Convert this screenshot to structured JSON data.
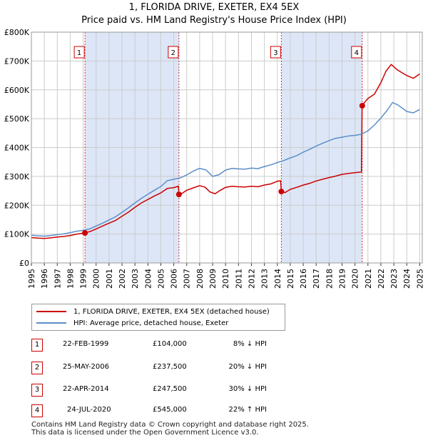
{
  "title_line1": "1, FLORIDA DRIVE, EXETER, EX4 5EX",
  "title_line2": "Price paid vs. HM Land Registry's House Price Index (HPI)",
  "chart_data": {
    "type": "line",
    "title": "1, FLORIDA DRIVE, EXETER, EX4 5EX — Price paid vs. HM Land Registry's House Price Index (HPI)",
    "xlabel": "",
    "ylabel": "",
    "xlim": [
      1995,
      2025.2
    ],
    "ylim": [
      0,
      800000
    ],
    "y_ticks": [
      0,
      100000,
      200000,
      300000,
      400000,
      500000,
      600000,
      700000,
      800000
    ],
    "y_tick_labels": [
      "£0",
      "£100K",
      "£200K",
      "£300K",
      "£400K",
      "£500K",
      "£600K",
      "£700K",
      "£800K"
    ],
    "x_ticks": [
      1995,
      1996,
      1997,
      1998,
      1999,
      2000,
      2001,
      2002,
      2003,
      2004,
      2005,
      2006,
      2007,
      2008,
      2009,
      2010,
      2011,
      2012,
      2013,
      2014,
      2015,
      2016,
      2017,
      2018,
      2019,
      2020,
      2021,
      2022,
      2023,
      2024,
      2025
    ],
    "grid": true,
    "legend_placement": "below-chart",
    "series": [
      {
        "name": "1, FLORIDA DRIVE, EXETER, EX4 5EX (detached house)",
        "color": "#cc0000",
        "points": [
          [
            1995.0,
            88000
          ],
          [
            1995.5,
            86000
          ],
          [
            1996.0,
            85000
          ],
          [
            1996.5,
            87000
          ],
          [
            1997.0,
            90000
          ],
          [
            1997.5,
            92000
          ],
          [
            1998.0,
            95000
          ],
          [
            1998.5,
            100000
          ],
          [
            1999.14,
            104000
          ],
          [
            1999.6,
            110000
          ],
          [
            2000.0,
            118000
          ],
          [
            2000.5,
            128000
          ],
          [
            2001.0,
            138000
          ],
          [
            2001.5,
            147000
          ],
          [
            2002.0,
            162000
          ],
          [
            2002.5,
            176000
          ],
          [
            2003.0,
            193000
          ],
          [
            2003.5,
            208000
          ],
          [
            2004.0,
            220000
          ],
          [
            2004.5,
            232000
          ],
          [
            2005.0,
            243000
          ],
          [
            2005.5,
            258000
          ],
          [
            2006.0,
            261000
          ],
          [
            2006.35,
            266000
          ],
          [
            2006.4,
            237500
          ],
          [
            2006.6,
            240000
          ],
          [
            2007.0,
            252000
          ],
          [
            2007.5,
            260000
          ],
          [
            2008.0,
            268000
          ],
          [
            2008.4,
            263000
          ],
          [
            2008.8,
            246000
          ],
          [
            2009.2,
            240000
          ],
          [
            2009.6,
            252000
          ],
          [
            2010.0,
            262000
          ],
          [
            2010.5,
            266000
          ],
          [
            2011.0,
            264000
          ],
          [
            2011.5,
            263000
          ],
          [
            2012.0,
            266000
          ],
          [
            2012.5,
            264000
          ],
          [
            2013.0,
            270000
          ],
          [
            2013.5,
            274000
          ],
          [
            2014.0,
            283000
          ],
          [
            2014.25,
            285000
          ],
          [
            2014.31,
            247500
          ],
          [
            2014.6,
            244000
          ],
          [
            2015.0,
            255000
          ],
          [
            2015.5,
            262000
          ],
          [
            2016.0,
            270000
          ],
          [
            2016.5,
            276000
          ],
          [
            2017.0,
            284000
          ],
          [
            2017.5,
            290000
          ],
          [
            2018.0,
            296000
          ],
          [
            2018.5,
            301000
          ],
          [
            2019.0,
            307000
          ],
          [
            2019.5,
            310000
          ],
          [
            2020.0,
            313000
          ],
          [
            2020.5,
            315000
          ],
          [
            2020.55,
            545000
          ],
          [
            2020.8,
            560000
          ],
          [
            2021.0,
            570000
          ],
          [
            2021.5,
            585000
          ],
          [
            2022.0,
            625000
          ],
          [
            2022.4,
            665000
          ],
          [
            2022.8,
            688000
          ],
          [
            2023.2,
            672000
          ],
          [
            2023.6,
            660000
          ],
          [
            2024.0,
            650000
          ],
          [
            2024.5,
            640000
          ],
          [
            2025.0,
            655000
          ]
        ]
      },
      {
        "name": "HPI: Average price, detached house, Exeter",
        "color": "#5b8ec7",
        "points": [
          [
            1995.0,
            96000
          ],
          [
            1995.5,
            94000
          ],
          [
            1996.0,
            93000
          ],
          [
            1996.5,
            95000
          ],
          [
            1997.0,
            98000
          ],
          [
            1997.5,
            101000
          ],
          [
            1998.0,
            105000
          ],
          [
            1998.5,
            110000
          ],
          [
            1999.0,
            113000
          ],
          [
            1999.5,
            118000
          ],
          [
            2000.0,
            128000
          ],
          [
            2000.5,
            138000
          ],
          [
            2001.0,
            149000
          ],
          [
            2001.5,
            160000
          ],
          [
            2002.0,
            175000
          ],
          [
            2002.5,
            191000
          ],
          [
            2003.0,
            208000
          ],
          [
            2003.5,
            224000
          ],
          [
            2004.0,
            238000
          ],
          [
            2004.5,
            252000
          ],
          [
            2005.0,
            265000
          ],
          [
            2005.5,
            285000
          ],
          [
            2006.0,
            290000
          ],
          [
            2006.5,
            295000
          ],
          [
            2007.0,
            305000
          ],
          [
            2007.5,
            318000
          ],
          [
            2008.0,
            328000
          ],
          [
            2008.5,
            322000
          ],
          [
            2009.0,
            300000
          ],
          [
            2009.5,
            306000
          ],
          [
            2010.0,
            322000
          ],
          [
            2010.5,
            328000
          ],
          [
            2011.0,
            326000
          ],
          [
            2011.5,
            325000
          ],
          [
            2012.0,
            329000
          ],
          [
            2012.5,
            327000
          ],
          [
            2013.0,
            334000
          ],
          [
            2013.5,
            340000
          ],
          [
            2014.0,
            348000
          ],
          [
            2014.5,
            355000
          ],
          [
            2015.0,
            364000
          ],
          [
            2015.5,
            372000
          ],
          [
            2016.0,
            384000
          ],
          [
            2016.5,
            394000
          ],
          [
            2017.0,
            405000
          ],
          [
            2017.5,
            415000
          ],
          [
            2018.0,
            424000
          ],
          [
            2018.5,
            432000
          ],
          [
            2019.0,
            436000
          ],
          [
            2019.5,
            440000
          ],
          [
            2020.0,
            442000
          ],
          [
            2020.5,
            446000
          ],
          [
            2021.0,
            458000
          ],
          [
            2021.5,
            478000
          ],
          [
            2022.0,
            502000
          ],
          [
            2022.5,
            530000
          ],
          [
            2022.9,
            556000
          ],
          [
            2023.3,
            548000
          ],
          [
            2023.7,
            535000
          ],
          [
            2024.0,
            525000
          ],
          [
            2024.5,
            520000
          ],
          [
            2025.0,
            532000
          ]
        ]
      }
    ],
    "sales": [
      {
        "num": "1",
        "year": 1999.14,
        "price": 104000,
        "date": "22-FEB-1999",
        "price_label": "£104,000",
        "hpi": "8% ↓ HPI"
      },
      {
        "num": "2",
        "year": 2006.4,
        "price": 237500,
        "date": "25-MAY-2006",
        "price_label": "£237,500",
        "hpi": "20% ↓ HPI"
      },
      {
        "num": "3",
        "year": 2014.31,
        "price": 247500,
        "date": "22-APR-2014",
        "price_label": "£247,500",
        "hpi": "30% ↓ HPI"
      },
      {
        "num": "4",
        "year": 2020.56,
        "price": 545000,
        "date": "24-JUL-2020",
        "price_label": "£545,000",
        "hpi": "22% ↑ HPI"
      }
    ],
    "shaded_periods": [
      [
        1999.14,
        2006.4
      ],
      [
        2014.31,
        2020.56
      ]
    ]
  },
  "legend": {
    "property_label": "1, FLORIDA DRIVE, EXETER, EX4 5EX (detached house)",
    "hpi_label": "HPI: Average price, detached house, Exeter"
  },
  "footer": {
    "line1": "Contains HM Land Registry data © Crown copyright and database right 2025.",
    "line2": "This data is licensed under the Open Government Licence v3.0."
  },
  "colors": {
    "property": "#cc0000",
    "hpi": "#5b8ec7",
    "shade": "#dce6f7"
  }
}
